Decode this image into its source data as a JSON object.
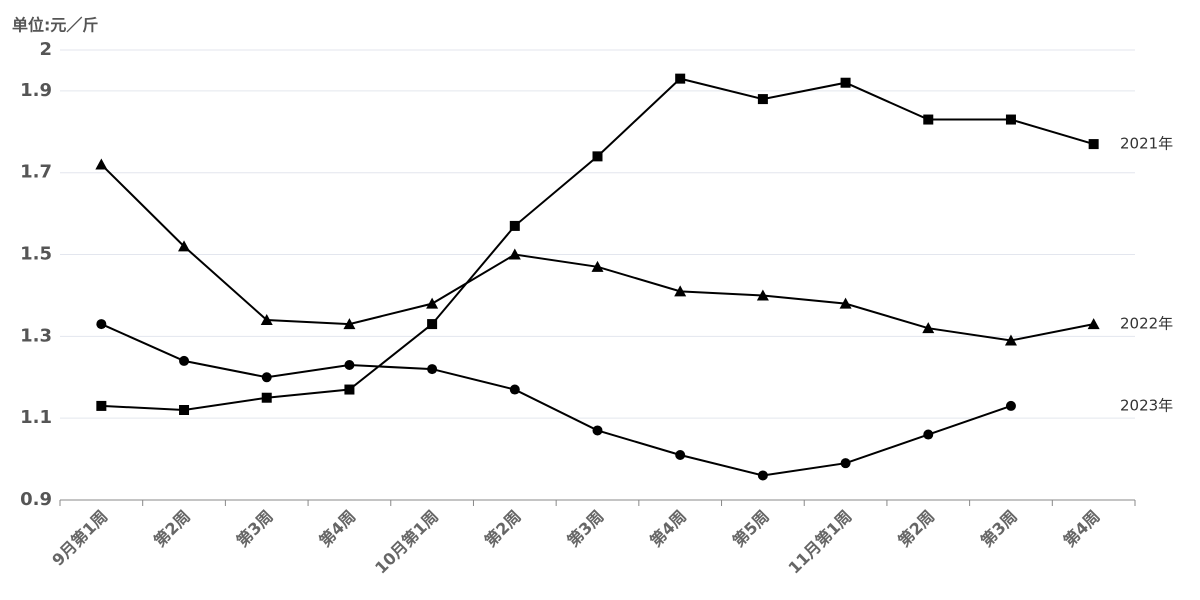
{
  "chart_data": {
    "type": "line",
    "unit_label": "单位:元／斤",
    "categories": [
      "9月第1周",
      "第2周",
      "第3周",
      "第4周",
      "10月第1周",
      "第2周",
      "第3周",
      "第4周",
      "第5周",
      "11月第1周",
      "第2周",
      "第3周",
      "第4周"
    ],
    "series": [
      {
        "name": "2021年",
        "color": "#000000",
        "marker": "square",
        "values": [
          1.13,
          1.12,
          1.15,
          1.17,
          1.33,
          1.57,
          1.74,
          1.93,
          1.88,
          1.92,
          1.83,
          1.83,
          1.77
        ]
      },
      {
        "name": "2022年",
        "color": "#000000",
        "marker": "triangle",
        "values": [
          1.72,
          1.52,
          1.34,
          1.33,
          1.38,
          1.5,
          1.47,
          1.41,
          1.4,
          1.38,
          1.32,
          1.29,
          1.33
        ]
      },
      {
        "name": "2023年",
        "color": "#000000",
        "marker": "circle",
        "values": [
          1.33,
          1.24,
          1.2,
          1.23,
          1.22,
          1.17,
          1.07,
          1.01,
          0.96,
          0.99,
          1.06,
          1.13,
          null
        ]
      }
    ],
    "ylim": [
      0.9,
      2
    ],
    "yticks": [
      0.9,
      1.1,
      1.3,
      1.5,
      1.7,
      1.9,
      2
    ],
    "grid": true
  }
}
